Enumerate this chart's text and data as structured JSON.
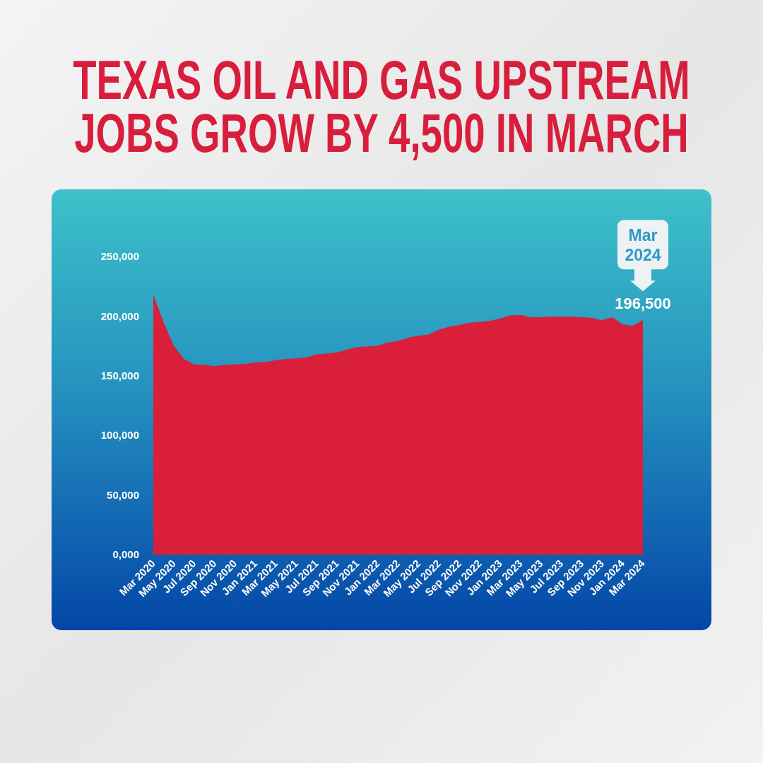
{
  "chart_data": {
    "type": "area",
    "title": "TEXAS OIL AND GAS UPSTREAM JOBS GROW BY 4,500 IN MARCH",
    "categories": [
      "Mar 2020",
      null,
      "May 2020",
      null,
      "Jul 2020",
      null,
      "Sep 2020",
      null,
      "Nov 2020",
      null,
      "Jan 2021",
      null,
      "Mar 2021",
      null,
      "May 2021",
      null,
      "Jul 2021",
      null,
      "Sep 2021",
      null,
      "Nov 2021",
      null,
      "Jan 2022",
      null,
      "Mar 2022",
      null,
      "May 2022",
      null,
      "Jul 2022",
      null,
      "Sep 2022",
      null,
      "Nov 2022",
      null,
      "Jan 2023",
      null,
      "Mar 2023",
      null,
      "May 2023",
      null,
      "Jul 2023",
      null,
      "Sep 2023",
      null,
      "Nov 2023",
      null,
      "Jan 2024",
      null,
      "Mar 2024"
    ],
    "values": [
      218000,
      195000,
      175000,
      164000,
      159500,
      159000,
      158000,
      159000,
      159500,
      160000,
      161000,
      161500,
      163000,
      164000,
      164500,
      165500,
      168000,
      168500,
      169500,
      172000,
      174000,
      174500,
      175000,
      178000,
      179000,
      182000,
      183500,
      184500,
      188500,
      191000,
      192500,
      194500,
      195000,
      196000,
      198000,
      200500,
      201000,
      199000,
      199000,
      199500,
      199500,
      199500,
      199000,
      198500,
      196500,
      199000,
      193000,
      192000,
      196500
    ],
    "color": "#d91f3a",
    "ylim": [
      0,
      250000
    ],
    "yticks": [
      {
        "value": 0,
        "label": "0,000"
      },
      {
        "value": 50000,
        "label": "50,000"
      },
      {
        "value": 100000,
        "label": "100,000"
      },
      {
        "value": 150000,
        "label": "150,000"
      },
      {
        "value": 200000,
        "label": "200,000"
      },
      {
        "value": 250000,
        "label": "250,000"
      }
    ],
    "value_labels": [
      null,
      null,
      null,
      null,
      null,
      null,
      null,
      null,
      null,
      null,
      null,
      null,
      null,
      null,
      null,
      null,
      null,
      null,
      null,
      null,
      null,
      null,
      null,
      null,
      null,
      null,
      null,
      null,
      null,
      null,
      null,
      null,
      null,
      null,
      null,
      null,
      null,
      null,
      null,
      null,
      null,
      null,
      null,
      null,
      null,
      null,
      null,
      null,
      "196,500"
    ],
    "annotations": [
      "Mar 2024"
    ]
  }
}
